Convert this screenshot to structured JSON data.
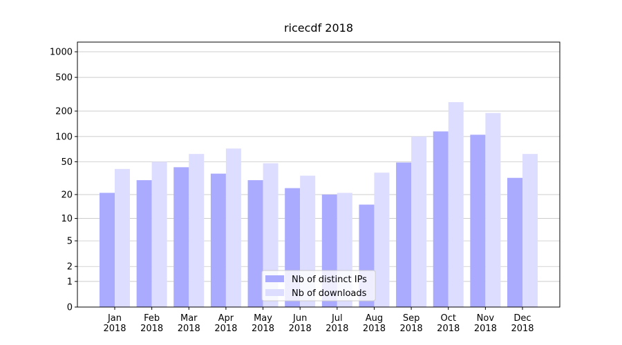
{
  "chart_data": {
    "type": "bar",
    "title": "ricecdf 2018",
    "categories": [
      "Jan 2018",
      "Feb 2018",
      "Mar 2018",
      "Apr 2018",
      "May 2018",
      "Jun 2018",
      "Jul 2018",
      "Aug 2018",
      "Sep 2018",
      "Oct 2018",
      "Nov 2018",
      "Dec 2018"
    ],
    "series": [
      {
        "name": "Nb of distinct IPs",
        "color": "#aaaaff",
        "values": [
          21,
          30,
          43,
          36,
          30,
          24,
          20,
          15,
          49,
          115,
          105,
          32
        ]
      },
      {
        "name": "Nb of downloads",
        "color": "#ddddff",
        "values": [
          41,
          50,
          62,
          72,
          48,
          34,
          21,
          37,
          100,
          255,
          190,
          62
        ]
      }
    ],
    "yscale": "symlog",
    "ylim": [
      0,
      1300
    ],
    "yticks": [
      0,
      1,
      2,
      5,
      10,
      20,
      50,
      100,
      200,
      500,
      1000
    ],
    "grid": true,
    "legend": "lower center"
  }
}
